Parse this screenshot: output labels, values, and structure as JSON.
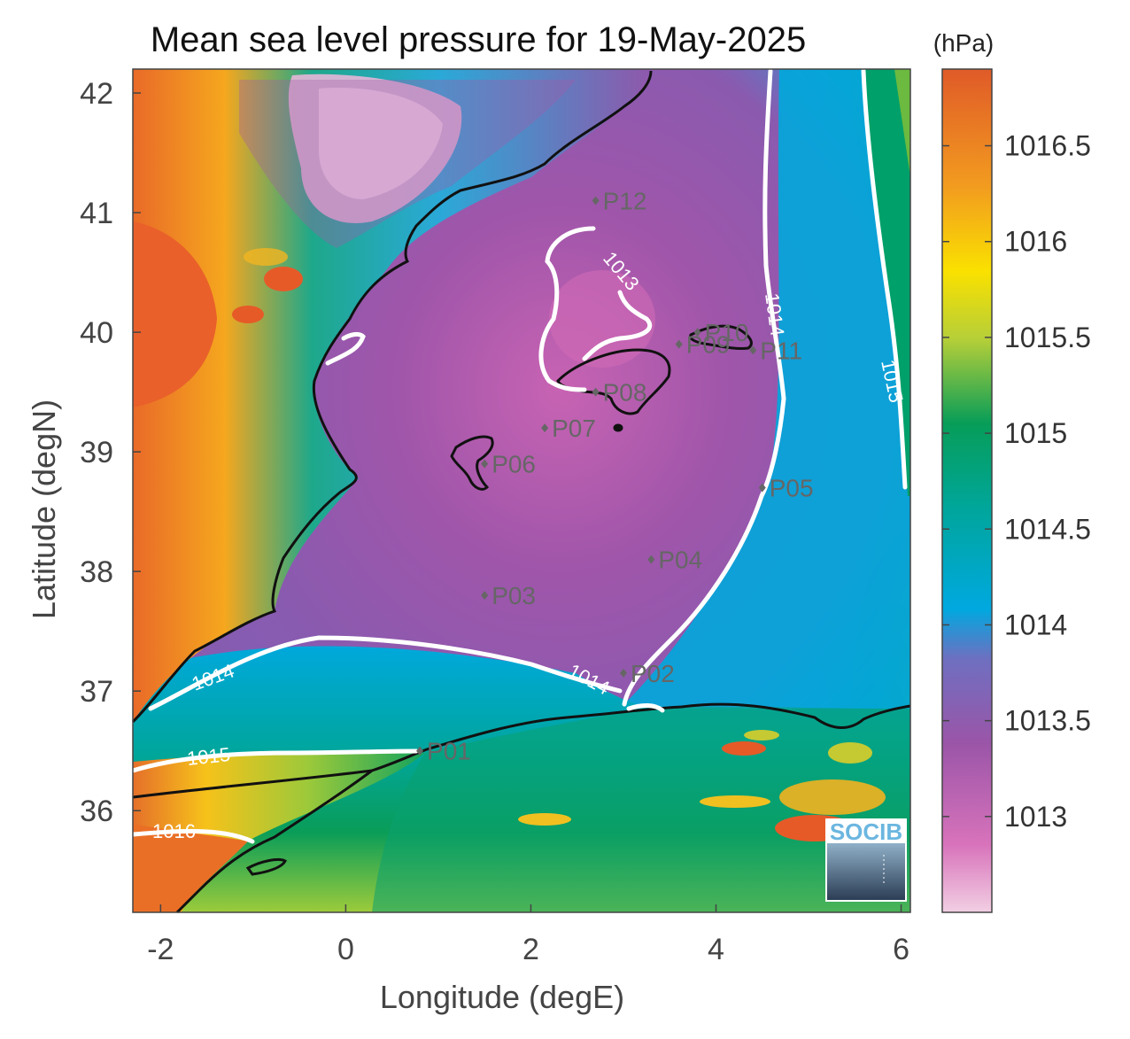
{
  "title": "Mean sea level pressure for 19-May-2025",
  "unit": "(hPa)",
  "xlabel": "Longitude (degE)",
  "ylabel": "Latitude (degN)",
  "x_ticks": [
    "-2",
    "0",
    "2",
    "4",
    "6"
  ],
  "y_ticks": [
    "42",
    "41",
    "40",
    "39",
    "38",
    "37",
    "36"
  ],
  "colorbar": {
    "ticks": [
      "1016.5",
      "1016",
      "1015.5",
      "1015",
      "1014.5",
      "1014",
      "1013.5",
      "1013"
    ],
    "range": [
      1012.5,
      1016.9
    ],
    "colors": [
      "#f2cfe3",
      "#d873bb",
      "#9b55a8",
      "#00a8e0",
      "#00a69a",
      "#079d58",
      "#b6cf38",
      "#fae100",
      "#f29c1f",
      "#e05a28"
    ]
  },
  "contours": [
    "1013",
    "1014",
    "1014",
    "1015",
    "1014",
    "1015",
    "1016"
  ],
  "stations": [
    {
      "name": "P01",
      "lon": 0.8,
      "lat": 36.5
    },
    {
      "name": "P02",
      "lon": 3.0,
      "lat": 37.15
    },
    {
      "name": "P03",
      "lon": 1.5,
      "lat": 37.8
    },
    {
      "name": "P04",
      "lon": 3.3,
      "lat": 38.1
    },
    {
      "name": "P05",
      "lon": 4.5,
      "lat": 38.7
    },
    {
      "name": "P06",
      "lon": 1.5,
      "lat": 38.9
    },
    {
      "name": "P07",
      "lon": 2.15,
      "lat": 39.2
    },
    {
      "name": "P08",
      "lon": 2.7,
      "lat": 39.5
    },
    {
      "name": "P09",
      "lon": 3.6,
      "lat": 39.9
    },
    {
      "name": "P10",
      "lon": 3.8,
      "lat": 40.0
    },
    {
      "name": "P11",
      "lon": 4.4,
      "lat": 39.85
    },
    {
      "name": "P12",
      "lon": 2.7,
      "lat": 41.1
    }
  ],
  "logo": "SOCIB"
}
